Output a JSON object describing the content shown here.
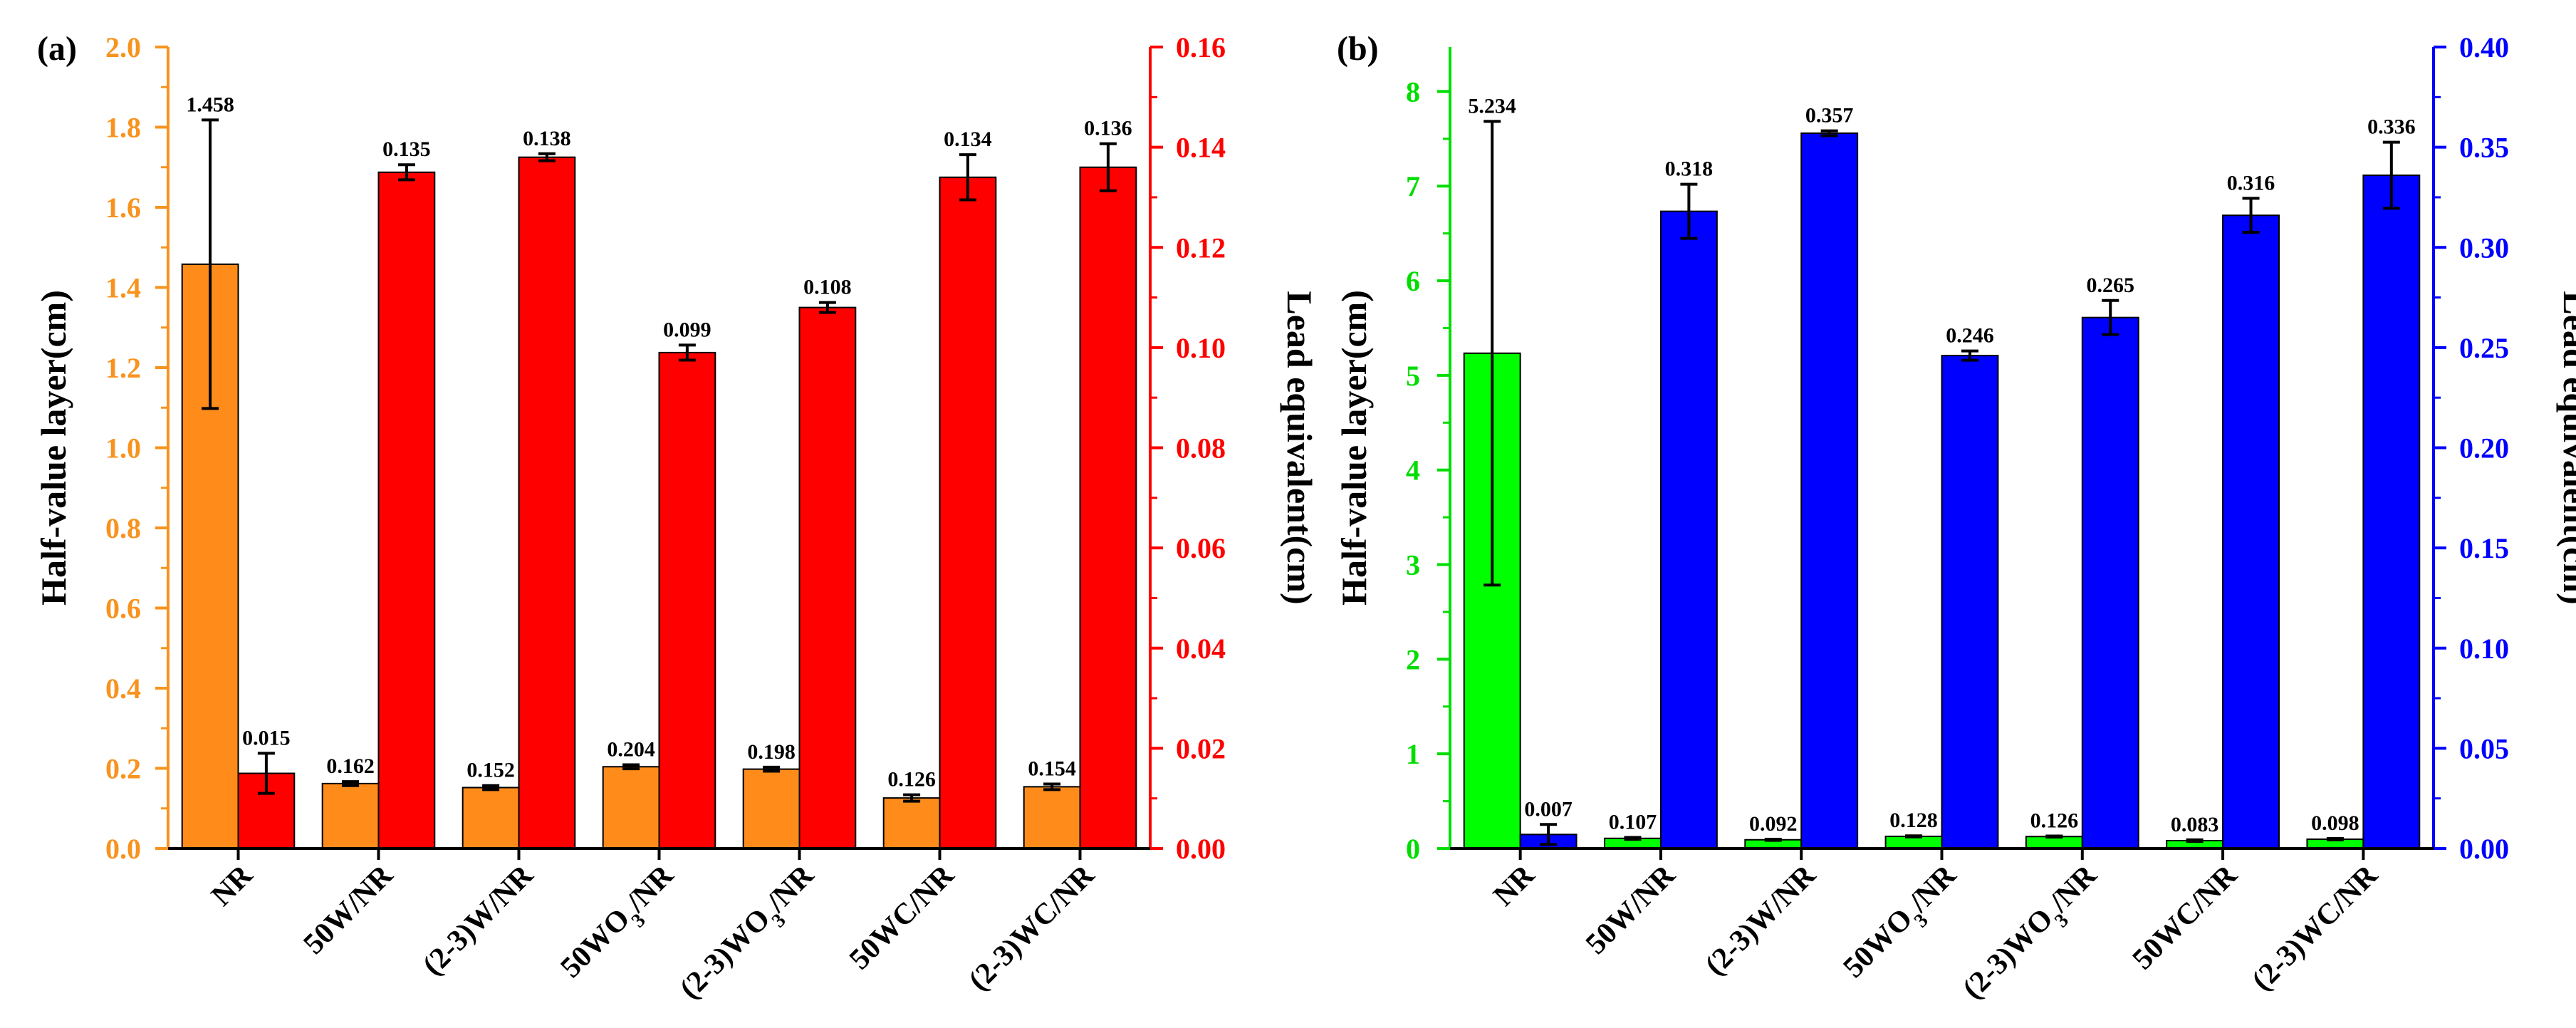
{
  "chart_data": [
    {
      "panel": "(a)",
      "type": "bar",
      "categories": [
        "NR",
        "50W/NR",
        "(2-3)W/NR",
        "50WO3/NR",
        "(2-3)WO3/NR",
        "50WC/NR",
        "(2-3)WC/NR"
      ],
      "categories_display": [
        [
          {
            "t": "NR"
          }
        ],
        [
          {
            "t": "50W/NR"
          }
        ],
        [
          {
            "t": "(2-3)W/NR"
          }
        ],
        [
          {
            "t": "50WO"
          },
          {
            "t": "3",
            "sub": true
          },
          {
            "t": "/NR"
          }
        ],
        [
          {
            "t": "(2-3)WO"
          },
          {
            "t": "3",
            "sub": true
          },
          {
            "t": "/NR"
          }
        ],
        [
          {
            "t": "50WC/NR"
          }
        ],
        [
          {
            "t": "(2-3)WC/NR"
          }
        ]
      ],
      "left_axis": {
        "label": "Half-value layer(cm)",
        "range": [
          0,
          2.0
        ],
        "ticks": [
          "0.0",
          "0.2",
          "0.4",
          "0.6",
          "0.8",
          "1.0",
          "1.2",
          "1.4",
          "1.6",
          "1.8",
          "2.0"
        ],
        "color": "#f7931e"
      },
      "right_axis": {
        "label": "Lead equivalent(cm)",
        "range": [
          0,
          0.16
        ],
        "ticks": [
          "0.00",
          "0.02",
          "0.04",
          "0.06",
          "0.08",
          "0.10",
          "0.12",
          "0.14",
          "0.16"
        ],
        "color": "#ff0000"
      },
      "series": [
        {
          "name": "Half-value layer",
          "axis": "left",
          "color": "#ff8c1a",
          "values": [
            1.458,
            0.162,
            0.152,
            0.204,
            0.198,
            0.126,
            0.154
          ],
          "labels": [
            "1.458",
            "0.162",
            "0.152",
            "0.204",
            "0.198",
            "0.126",
            "0.154"
          ],
          "errors": [
            0.36,
            0.005,
            0.005,
            0.005,
            0.005,
            0.008,
            0.007
          ]
        },
        {
          "name": "Lead equivalent",
          "axis": "right",
          "color": "#ff0000",
          "values": [
            0.015,
            0.135,
            0.138,
            0.099,
            0.108,
            0.134,
            0.136
          ],
          "labels": [
            "0.015",
            "0.135",
            "0.138",
            "0.099",
            "0.108",
            "0.134",
            "0.136"
          ],
          "errors": [
            0.004,
            0.0015,
            0.0007,
            0.0015,
            0.001,
            0.0045,
            0.0047
          ]
        }
      ]
    },
    {
      "panel": "(b)",
      "type": "bar",
      "categories": [
        "NR",
        "50W/NR",
        "(2-3)W/NR",
        "50WO3/NR",
        "(2-3)WO3/NR",
        "50WC/NR",
        "(2-3)WC/NR"
      ],
      "categories_display": [
        [
          {
            "t": "NR"
          }
        ],
        [
          {
            "t": "50W/NR"
          }
        ],
        [
          {
            "t": "(2-3)W/NR"
          }
        ],
        [
          {
            "t": "50WO"
          },
          {
            "t": "3",
            "sub": true
          },
          {
            "t": "/NR"
          }
        ],
        [
          {
            "t": "(2-3)WO"
          },
          {
            "t": "3",
            "sub": true
          },
          {
            "t": "/NR"
          }
        ],
        [
          {
            "t": "50WC/NR"
          }
        ],
        [
          {
            "t": "(2-3)WC/NR"
          }
        ]
      ],
      "left_axis": {
        "label": "Half-value layer(cm)",
        "range": [
          0,
          8.47
        ],
        "ticks": [
          "0",
          "1",
          "2",
          "3",
          "4",
          "5",
          "6",
          "7",
          "8"
        ],
        "tick_values": [
          0,
          1,
          2,
          3,
          4,
          5,
          6,
          7,
          8
        ],
        "color": "#00dd00"
      },
      "right_axis": {
        "label": "Lead equivalent(cm)",
        "range": [
          0,
          0.4
        ],
        "ticks": [
          "0.00",
          "0.05",
          "0.10",
          "0.15",
          "0.20",
          "0.25",
          "0.30",
          "0.35",
          "0.40"
        ],
        "color": "#0000ff"
      },
      "series": [
        {
          "name": "Half-value layer",
          "axis": "left",
          "color": "#00ff00",
          "values": [
            5.234,
            0.107,
            0.092,
            0.128,
            0.126,
            0.083,
            0.098
          ],
          "labels": [
            "5.234",
            "0.107",
            "0.092",
            "0.128",
            "0.126",
            "0.083",
            "0.098"
          ],
          "errors": [
            2.45,
            0.01,
            0.006,
            0.006,
            0.006,
            0.008,
            0.007
          ]
        },
        {
          "name": "Lead equivalent",
          "axis": "right",
          "color": "#0000ff",
          "values": [
            0.007,
            0.318,
            0.357,
            0.246,
            0.265,
            0.316,
            0.336
          ],
          "labels": [
            "0.007",
            "0.318",
            "0.357",
            "0.246",
            "0.265",
            "0.316",
            "0.336"
          ],
          "errors": [
            0.005,
            0.0135,
            0.0012,
            0.0023,
            0.0085,
            0.0085,
            0.0165
          ]
        }
      ]
    }
  ]
}
